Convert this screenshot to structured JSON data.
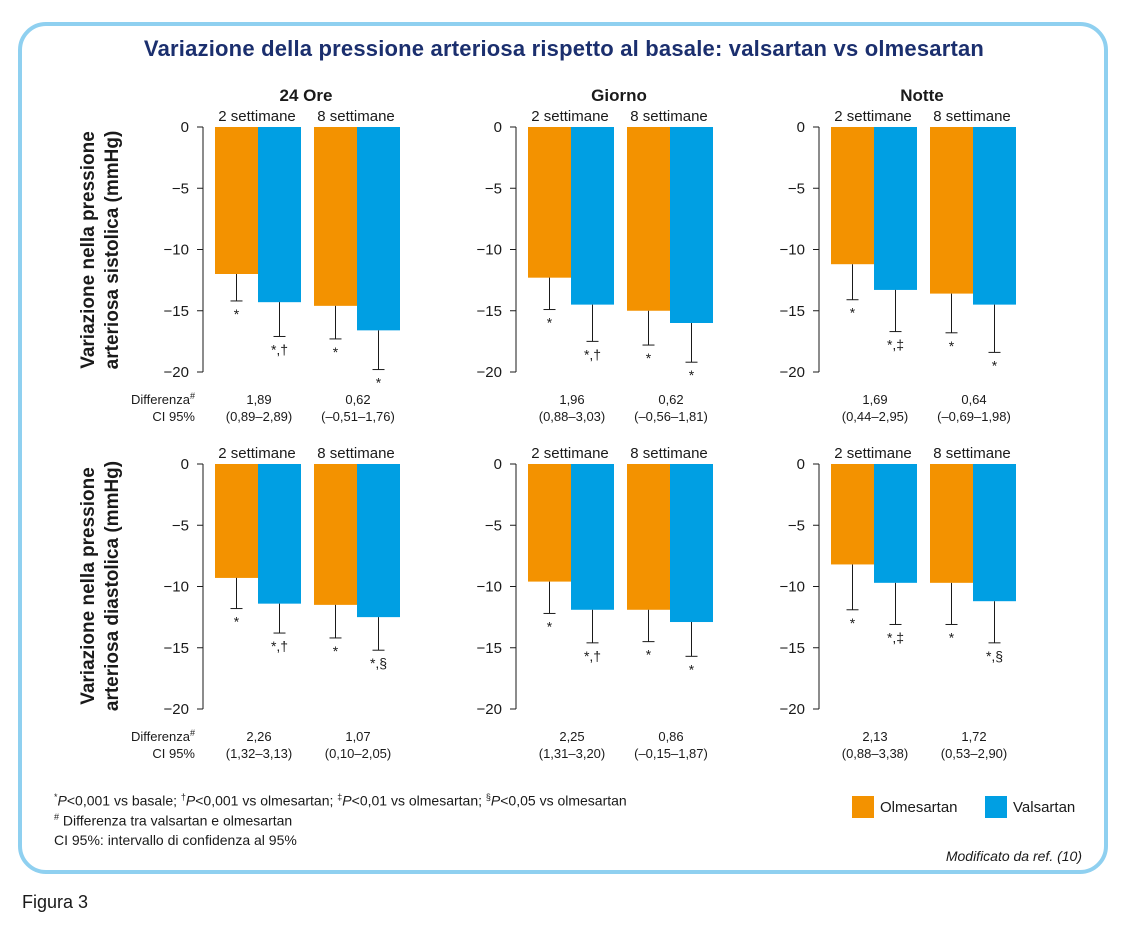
{
  "page": {
    "title": "Variazione della pressione arteriosa rispetto al basale: valsartan vs olmesartan",
    "figure_label": "Figura 3",
    "source_note": "Modificato da ref. (10)"
  },
  "colors": {
    "olmesartan": "#f39200",
    "valsartan": "#009fe3",
    "frame": "#8fd0f0",
    "title": "#1b2f6e"
  },
  "legend": [
    {
      "name": "Olmesartan",
      "color": "#f39200"
    },
    {
      "name": "Valsartan",
      "color": "#009fe3"
    }
  ],
  "row_labels": {
    "top": [
      "Variazione nella pressione",
      "arteriosa sistolica (mmHg)"
    ],
    "bottom": [
      "Variazione nella pressione",
      "arteriosa diastolica (mmHg)"
    ]
  },
  "diff_labels": {
    "diff": "Differenza",
    "diff_mark": "#",
    "ci": "CI 95%"
  },
  "footnotes": {
    "line1": [
      {
        "sup": "*",
        "text": "",
        "italic": "P",
        "rest": "<0,001 vs basale; "
      },
      {
        "sup": "†",
        "text": "",
        "italic": "P",
        "rest": "<0,001 vs olmesartan; "
      },
      {
        "sup": "‡",
        "text": "",
        "italic": "P",
        "rest": "<0,01 vs olmesartan; "
      },
      {
        "sup": "§",
        "text": "",
        "italic": "P",
        "rest": "<0,05 vs olmesartan"
      }
    ],
    "line2_sup": "#",
    "line2": " Differenza tra valsartan e olmesartan",
    "line3": "CI 95%: intervallo di confidenza al 95%"
  },
  "chart_data": [
    {
      "type": "bar",
      "title": "24 Ore",
      "measure": "sistolica",
      "ylim": [
        -20,
        0
      ],
      "yticks": [
        0,
        -5,
        -10,
        -15,
        -20
      ],
      "groups": [
        "2 settimane",
        "8 settimane"
      ],
      "series": [
        {
          "name": "Olmesartan",
          "values": [
            -12.0,
            -14.6
          ],
          "error_low": [
            -14.2,
            -17.3
          ],
          "markers": [
            "*",
            "*"
          ]
        },
        {
          "name": "Valsartan",
          "values": [
            -14.3,
            -16.6
          ],
          "error_low": [
            -17.1,
            -19.8
          ],
          "markers": [
            "*,†",
            "*"
          ]
        }
      ],
      "differences": [
        "1,89",
        "0,62"
      ],
      "ci": [
        "(0,89–2,89)",
        "(–0,51–1,76)"
      ]
    },
    {
      "type": "bar",
      "title": "Giorno",
      "measure": "sistolica",
      "ylim": [
        -20,
        0
      ],
      "yticks": [
        0,
        -5,
        -10,
        -15,
        -20
      ],
      "groups": [
        "2 settimane",
        "8 settimane"
      ],
      "series": [
        {
          "name": "Olmesartan",
          "values": [
            -12.3,
            -15.0
          ],
          "error_low": [
            -14.9,
            -17.8
          ],
          "markers": [
            "*",
            "*"
          ]
        },
        {
          "name": "Valsartan",
          "values": [
            -14.5,
            -16.0
          ],
          "error_low": [
            -17.5,
            -19.2
          ],
          "markers": [
            "*,†",
            "*"
          ]
        }
      ],
      "differences": [
        "1,96",
        "0,62"
      ],
      "ci": [
        "(0,88–3,03)",
        "(–0,56–1,81)"
      ]
    },
    {
      "type": "bar",
      "title": "Notte",
      "measure": "sistolica",
      "ylim": [
        -20,
        0
      ],
      "yticks": [
        0,
        -5,
        -10,
        -15,
        -20
      ],
      "groups": [
        "2 settimane",
        "8 settimane"
      ],
      "series": [
        {
          "name": "Olmesartan",
          "values": [
            -11.2,
            -13.6
          ],
          "error_low": [
            -14.1,
            -16.8
          ],
          "markers": [
            "*",
            "*"
          ]
        },
        {
          "name": "Valsartan",
          "values": [
            -13.3,
            -14.5
          ],
          "error_low": [
            -16.7,
            -18.4
          ],
          "markers": [
            "*,‡",
            "*"
          ]
        }
      ],
      "differences": [
        "1,69",
        "0,64"
      ],
      "ci": [
        "(0,44–2,95)",
        "(–0,69–1,98)"
      ]
    },
    {
      "type": "bar",
      "title": "",
      "measure": "diastolica",
      "ylim": [
        -20,
        0
      ],
      "yticks": [
        0,
        -5,
        -10,
        -15,
        -20
      ],
      "groups": [
        "2 settimane",
        "8 settimane"
      ],
      "series": [
        {
          "name": "Olmesartan",
          "values": [
            -9.3,
            -11.5
          ],
          "error_low": [
            -11.8,
            -14.2
          ],
          "markers": [
            "*",
            "*"
          ]
        },
        {
          "name": "Valsartan",
          "values": [
            -11.4,
            -12.5
          ],
          "error_low": [
            -13.8,
            -15.2
          ],
          "markers": [
            "*,†",
            "*,§"
          ]
        }
      ],
      "differences": [
        "2,26",
        "1,07"
      ],
      "ci": [
        "(1,32–3,13)",
        "(0,10–2,05)"
      ]
    },
    {
      "type": "bar",
      "title": "",
      "measure": "diastolica",
      "ylim": [
        -20,
        0
      ],
      "yticks": [
        0,
        -5,
        -10,
        -15,
        -20
      ],
      "groups": [
        "2 settimane",
        "8 settimane"
      ],
      "series": [
        {
          "name": "Olmesartan",
          "values": [
            -9.6,
            -11.9
          ],
          "error_low": [
            -12.2,
            -14.5
          ],
          "markers": [
            "*",
            "*"
          ]
        },
        {
          "name": "Valsartan",
          "values": [
            -11.9,
            -12.9
          ],
          "error_low": [
            -14.6,
            -15.7
          ],
          "markers": [
            "*,†",
            "*"
          ]
        }
      ],
      "differences": [
        "2,25",
        "0,86"
      ],
      "ci": [
        "(1,31–3,20)",
        "(–0,15–1,87)"
      ]
    },
    {
      "type": "bar",
      "title": "",
      "measure": "diastolica",
      "ylim": [
        -20,
        0
      ],
      "yticks": [
        0,
        -5,
        -10,
        -15,
        -20
      ],
      "groups": [
        "2 settimane",
        "8 settimane"
      ],
      "series": [
        {
          "name": "Olmesartan",
          "values": [
            -8.2,
            -9.7
          ],
          "error_low": [
            -11.9,
            -13.1
          ],
          "markers": [
            "*",
            "*"
          ]
        },
        {
          "name": "Valsartan",
          "values": [
            -9.7,
            -11.2
          ],
          "error_low": [
            -13.1,
            -14.6
          ],
          "markers": [
            "*,‡",
            "*,§"
          ]
        }
      ],
      "differences": [
        "2,13",
        "1,72"
      ],
      "ci": [
        "(0,88–3,38)",
        "(0,53–2,90)"
      ]
    }
  ]
}
